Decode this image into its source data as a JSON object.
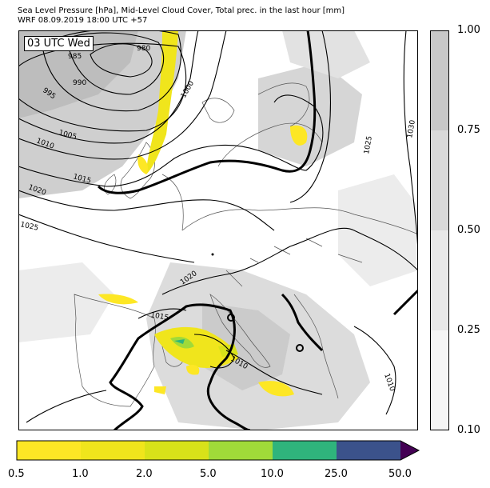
{
  "header": {
    "title_line1": "Sea Level Pressure [hPa], Mid-Level Cloud Cover, Total prec. in the last hour [mm]",
    "title_line2": "WRF 08.09.2019 18:00 UTC +57"
  },
  "map": {
    "time_label": "03 UTC Wed",
    "isobar_labels": [
      "980",
      "985",
      "990",
      "995",
      "1000",
      "1005",
      "1010",
      "1015",
      "1020",
      "1025",
      "1030",
      "1025",
      "1020",
      "1015",
      "1010",
      "1010"
    ]
  },
  "cloud_colorbar": {
    "ticks": [
      "1.00",
      "0.75",
      "0.50",
      "0.25",
      "0.10"
    ],
    "colors": [
      "#c8c8c8",
      "#d9d9d9",
      "#e8e8e8",
      "#f5f5f5"
    ]
  },
  "precip_colorbar": {
    "ticks": [
      "0.5",
      "1.0",
      "2.0",
      "5.0",
      "10.0",
      "25.0",
      "50.0"
    ],
    "colors": [
      "#fde725",
      "#f0e51c",
      "#d8e219",
      "#a0da39",
      "#2fb47c",
      "#3b528b",
      "#440154"
    ]
  }
}
